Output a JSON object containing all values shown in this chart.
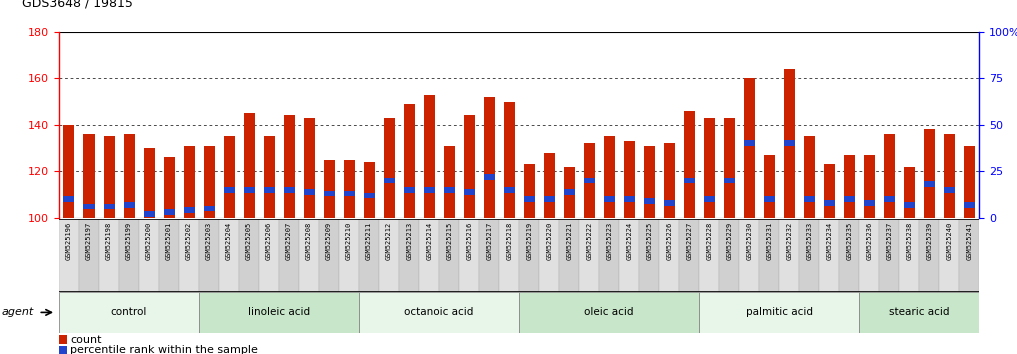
{
  "title": "GDS3648 / 19815",
  "samples": [
    "GSM525196",
    "GSM525197",
    "GSM525198",
    "GSM525199",
    "GSM525200",
    "GSM525201",
    "GSM525202",
    "GSM525203",
    "GSM525204",
    "GSM525205",
    "GSM525206",
    "GSM525207",
    "GSM525208",
    "GSM525209",
    "GSM525210",
    "GSM525211",
    "GSM525212",
    "GSM525213",
    "GSM525214",
    "GSM525215",
    "GSM525216",
    "GSM525217",
    "GSM525218",
    "GSM525219",
    "GSM525220",
    "GSM525221",
    "GSM525222",
    "GSM525223",
    "GSM525224",
    "GSM525225",
    "GSM525226",
    "GSM525227",
    "GSM525228",
    "GSM525229",
    "GSM525230",
    "GSM525231",
    "GSM525232",
    "GSM525233",
    "GSM525234",
    "GSM525235",
    "GSM525236",
    "GSM525237",
    "GSM525238",
    "GSM525239",
    "GSM525240",
    "GSM525241"
  ],
  "counts": [
    140,
    136,
    135,
    136,
    130,
    126,
    131,
    131,
    135,
    145,
    135,
    144,
    143,
    125,
    125,
    124,
    143,
    149,
    153,
    131,
    144,
    152,
    150,
    123,
    128,
    122,
    132,
    135,
    133,
    131,
    132,
    146,
    143,
    143,
    160,
    127,
    164,
    135,
    123,
    127,
    127,
    136,
    122,
    138,
    136,
    131
  ],
  "percentiles": [
    10,
    6,
    6,
    7,
    2,
    3,
    4,
    5,
    15,
    15,
    15,
    15,
    14,
    13,
    13,
    12,
    20,
    15,
    15,
    15,
    14,
    22,
    15,
    10,
    10,
    14,
    20,
    10,
    10,
    9,
    8,
    20,
    10,
    20,
    40,
    10,
    40,
    10,
    8,
    10,
    8,
    10,
    7,
    18,
    15,
    7
  ],
  "groups": [
    {
      "label": "control",
      "start": 0,
      "end": 7
    },
    {
      "label": "linoleic acid",
      "start": 7,
      "end": 15
    },
    {
      "label": "octanoic acid",
      "start": 15,
      "end": 23
    },
    {
      "label": "oleic acid",
      "start": 23,
      "end": 32
    },
    {
      "label": "palmitic acid",
      "start": 32,
      "end": 40
    },
    {
      "label": "stearic acid",
      "start": 40,
      "end": 46
    }
  ],
  "group_colors": [
    "#e8f5e9",
    "#c8e6c9",
    "#e8f5e9",
    "#c8e6c9",
    "#e8f5e9",
    "#c8e6c9"
  ],
  "ylim_left": [
    100,
    180
  ],
  "ylim_right": [
    0,
    100
  ],
  "yticks_left": [
    100,
    120,
    140,
    160,
    180
  ],
  "yticks_right": [
    0,
    25,
    50,
    75,
    100
  ],
  "bar_color": "#cc2200",
  "percentile_color": "#2244cc",
  "agent_label": "agent",
  "legend_count": "count",
  "legend_pct": "percentile rank within the sample"
}
